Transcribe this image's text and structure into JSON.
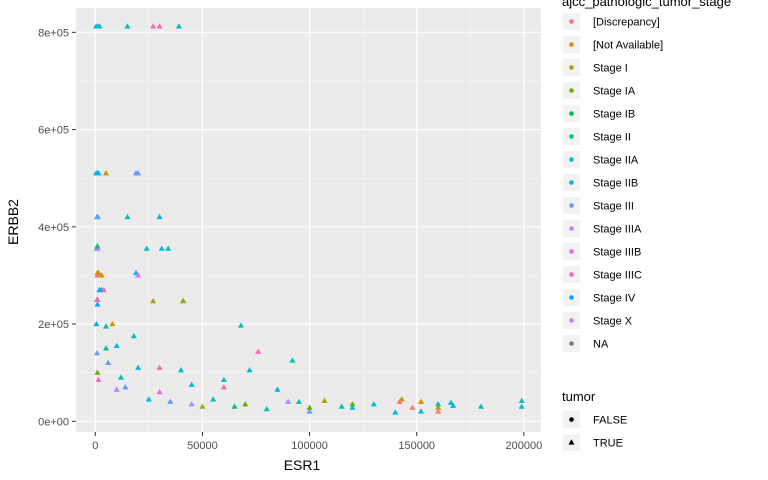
{
  "chart_data": {
    "type": "scatter",
    "xlabel": "ESR1",
    "ylabel": "ERBB2",
    "xlim": [
      -9000,
      208000
    ],
    "ylim": [
      -22000,
      850000
    ],
    "x_ticks": [
      0,
      50000,
      100000,
      150000,
      200000
    ],
    "x_tick_labels": [
      "0",
      "50000",
      "100000",
      "150000",
      "200000"
    ],
    "y_ticks": [
      0,
      200000,
      400000,
      600000,
      800000
    ],
    "y_tick_labels": [
      "0e+00",
      "2e+05",
      "4e+05",
      "6e+05",
      "8e+05"
    ],
    "grid": true,
    "background": "#EBEBEB",
    "legend_position": "right",
    "color_legend": {
      "title": "ajcc_pathologic_tumor_stage",
      "entries": [
        {
          "label": "[Discrepancy]",
          "color": "#F8766D"
        },
        {
          "label": "[Not Available]",
          "color": "#DB8E00"
        },
        {
          "label": "Stage I",
          "color": "#AEA200"
        },
        {
          "label": "Stage IA",
          "color": "#64B200"
        },
        {
          "label": "Stage IB",
          "color": "#00BA38"
        },
        {
          "label": "Stage II",
          "color": "#00C08B"
        },
        {
          "label": "Stage IIA",
          "color": "#00BFC4"
        },
        {
          "label": "Stage IIB",
          "color": "#00B4F0"
        },
        {
          "label": "Stage III",
          "color": "#619CFF"
        },
        {
          "label": "Stage IIIA",
          "color": "#B385FF"
        },
        {
          "label": "Stage IIIB",
          "color": "#EF67EB"
        },
        {
          "label": "Stage IIIC",
          "color": "#FF63B6"
        },
        {
          "label": "Stage IV",
          "color": "#00A9FF"
        },
        {
          "label": "Stage X",
          "color": "#C77CFF"
        },
        {
          "label": "NA",
          "color": "#7F7F7F"
        }
      ]
    },
    "shape_legend": {
      "title": "tumor",
      "entries": [
        {
          "label": "FALSE",
          "shape": "circle"
        },
        {
          "label": "TRUE",
          "shape": "triangle"
        }
      ]
    },
    "series": [
      {
        "stage": "Stage IIA",
        "tumor": "TRUE",
        "points": [
          [
            400,
            812000
          ],
          [
            1200,
            812000
          ],
          [
            15000,
            812000
          ],
          [
            39000,
            812000
          ],
          [
            1000,
            510000
          ],
          [
            1200,
            420000
          ],
          [
            24000,
            355000
          ],
          [
            34000,
            355000
          ],
          [
            700,
            355000
          ],
          [
            15000,
            420000
          ],
          [
            68000,
            197000
          ],
          [
            92000,
            125000
          ],
          [
            72000,
            105000
          ],
          [
            60000,
            85000
          ],
          [
            40000,
            105000
          ],
          [
            2000,
            270000
          ],
          [
            5000,
            195000
          ],
          [
            18000,
            175000
          ],
          [
            41000,
            247000
          ],
          [
            12000,
            90000
          ],
          [
            152000,
            20000
          ],
          [
            160000,
            35000
          ],
          [
            166000,
            38000
          ],
          [
            180000,
            30000
          ],
          [
            199000,
            42000
          ],
          [
            130000,
            35000
          ],
          [
            115000,
            30000
          ],
          [
            95000,
            40000
          ],
          [
            80000,
            25000
          ],
          [
            55000,
            45000
          ]
        ]
      },
      {
        "stage": "Stage IIB",
        "tumor": "TRUE",
        "points": [
          [
            2000,
            812000
          ],
          [
            400,
            510000
          ],
          [
            1500,
            510000
          ],
          [
            30000,
            420000
          ],
          [
            31000,
            355000
          ],
          [
            19000,
            305000
          ],
          [
            3000,
            270000
          ],
          [
            1000,
            250000
          ],
          [
            500,
            200000
          ],
          [
            10000,
            155000
          ],
          [
            20000,
            110000
          ],
          [
            45000,
            75000
          ],
          [
            85000,
            65000
          ],
          [
            120000,
            28000
          ],
          [
            140000,
            18000
          ],
          [
            167000,
            32000
          ],
          [
            199000,
            30000
          ],
          [
            25000,
            45000
          ]
        ]
      },
      {
        "stage": "Stage IIIC",
        "tumor": "TRUE",
        "points": [
          [
            27000,
            812000
          ],
          [
            30000,
            812000
          ],
          [
            800,
            250000
          ],
          [
            4000,
            270000
          ],
          [
            30000,
            110000
          ],
          [
            76000,
            143000
          ],
          [
            60000,
            70000
          ],
          [
            1500,
            85000
          ]
        ]
      },
      {
        "stage": "Stage III",
        "tumor": "TRUE",
        "points": [
          [
            19000,
            510000
          ],
          [
            20000,
            510000
          ],
          [
            800,
            420000
          ],
          [
            800,
            140000
          ],
          [
            14000,
            70000
          ],
          [
            6000,
            120000
          ],
          [
            100000,
            20000
          ],
          [
            35000,
            40000
          ]
        ]
      },
      {
        "stage": "Stage I",
        "tumor": "TRUE",
        "points": [
          [
            5000,
            510000
          ],
          [
            27000,
            247000
          ],
          [
            41000,
            248000
          ],
          [
            1000,
            305000
          ],
          [
            143000,
            45000
          ],
          [
            160000,
            28000
          ],
          [
            50000,
            30000
          ],
          [
            107000,
            42000
          ]
        ]
      },
      {
        "stage": "[Not Available]",
        "tumor": "TRUE",
        "points": [
          [
            1500,
            305000
          ],
          [
            3000,
            300000
          ],
          [
            152000,
            40000
          ],
          [
            8000,
            200000
          ]
        ]
      },
      {
        "stage": "[Discrepancy]",
        "tumor": "TRUE",
        "points": [
          [
            148000,
            28000
          ],
          [
            142000,
            40000
          ],
          [
            160000,
            20000
          ],
          [
            1000,
            300000
          ]
        ]
      },
      {
        "stage": "Stage IIIA",
        "tumor": "TRUE",
        "points": [
          [
            1000,
            355000
          ],
          [
            10000,
            65000
          ],
          [
            90000,
            40000
          ],
          [
            45000,
            35000
          ]
        ]
      },
      {
        "stage": "Stage IA",
        "tumor": "TRUE",
        "points": [
          [
            120000,
            35000
          ],
          [
            100000,
            28000
          ],
          [
            1000,
            100000
          ],
          [
            70000,
            35000
          ]
        ]
      },
      {
        "stage": "Stage II",
        "tumor": "TRUE",
        "points": [
          [
            1000,
            360000
          ],
          [
            5000,
            150000
          ],
          [
            65000,
            30000
          ]
        ]
      },
      {
        "stage": "Stage IV",
        "tumor": "TRUE",
        "points": [
          [
            2000,
            270000
          ],
          [
            1000,
            240000
          ]
        ]
      },
      {
        "stage": "Stage IIIB",
        "tumor": "TRUE",
        "points": [
          [
            20000,
            300000
          ],
          [
            30000,
            60000
          ]
        ]
      }
    ]
  }
}
